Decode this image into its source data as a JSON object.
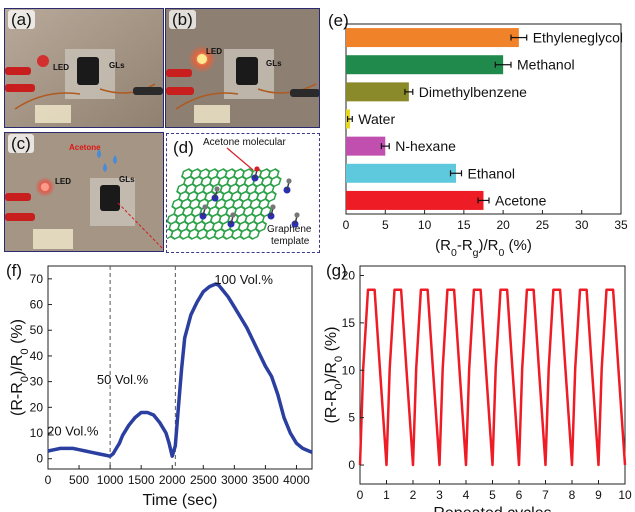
{
  "photos": {
    "a": {
      "tag": "(a)",
      "led": "LED",
      "gls": "GLs"
    },
    "b": {
      "tag": "(b)",
      "led": "LED",
      "gls": "GLs"
    },
    "c": {
      "tag": "(c)",
      "acetone": "Acetone",
      "led": "LED",
      "gls": "GLs"
    }
  },
  "diagram": {
    "tag": "(d)",
    "molecule_label": "Acetone molecular",
    "template_label_1": "Graphene",
    "template_label_2": "template"
  },
  "chart_data": [
    {
      "panel": "(e)",
      "type": "bar",
      "orientation": "horizontal",
      "categories": [
        "Ethyleneglycol",
        "Methanol",
        "Dimethylbenzene",
        "Water",
        "N-hexane",
        "Ethanol",
        "Acetone"
      ],
      "values": [
        22,
        20,
        8,
        0.5,
        5,
        14,
        17.5
      ],
      "errors": [
        1,
        1,
        0.5,
        0.3,
        0.5,
        0.7,
        0.7
      ],
      "colors": [
        "#f0822a",
        "#1f8a4c",
        "#8a8a2a",
        "#e6d81c",
        "#c04fb0",
        "#5ec8dc",
        "#ee1c25"
      ],
      "xlabel": "(R0-Rg)/R0 (%)",
      "xlim": [
        0,
        35
      ],
      "xticks": [
        "0",
        "5",
        "10",
        "15",
        "20",
        "25",
        "30",
        "35"
      ]
    },
    {
      "panel": "(f)",
      "type": "line",
      "color": "#2b3fa0",
      "xlabel": "Time (sec)",
      "ylabel": "(R-R0)/R0 (%)",
      "xlim": [
        0,
        4250
      ],
      "ylim": [
        -4,
        75
      ],
      "xticks": [
        "0",
        "500",
        "1000",
        "1500",
        "2000",
        "2500",
        "3000",
        "3500",
        "4000"
      ],
      "yticks": [
        "0",
        "10",
        "20",
        "30",
        "40",
        "50",
        "60",
        "70"
      ],
      "annotations": [
        "20 Vol.%",
        "50 Vol.%",
        "100 Vol.%"
      ],
      "x": [
        0,
        100,
        200,
        300,
        400,
        500,
        600,
        700,
        800,
        900,
        1000,
        1050,
        1100,
        1150,
        1200,
        1300,
        1400,
        1500,
        1600,
        1700,
        1800,
        1900,
        1950,
        2000,
        2050,
        2100,
        2150,
        2200,
        2300,
        2400,
        2500,
        2600,
        2700,
        2750,
        2800,
        2900,
        3000,
        3100,
        3200,
        3300,
        3400,
        3500,
        3600,
        3700,
        3800,
        3900,
        4000,
        4100,
        4200,
        4250
      ],
      "y": [
        3,
        3.5,
        4,
        4,
        4,
        3.5,
        3,
        2.5,
        2,
        1.5,
        1,
        2,
        4,
        6,
        9,
        13,
        16,
        18,
        18,
        17,
        14,
        10,
        6,
        1,
        5,
        20,
        35,
        47,
        56,
        61,
        65,
        67,
        68,
        67.5,
        66,
        63,
        59,
        55,
        51,
        46,
        41,
        36,
        32,
        25,
        16,
        10,
        6,
        4,
        3,
        2.5
      ],
      "vlines": [
        1000,
        2050
      ]
    },
    {
      "panel": "(g)",
      "type": "line",
      "color": "#ee1c25",
      "xlabel": "Repeated cycles",
      "ylabel": "(R-R0)/R0 (%)",
      "xlim": [
        0,
        10
      ],
      "ylim": [
        -2,
        21
      ],
      "xticks": [
        "0",
        "1",
        "2",
        "3",
        "4",
        "5",
        "6",
        "7",
        "8",
        "9",
        "10"
      ],
      "yticks": [
        "0",
        "5",
        "10",
        "15",
        "20"
      ],
      "cycles": 10,
      "peak": 18.5,
      "trough": 0
    }
  ]
}
